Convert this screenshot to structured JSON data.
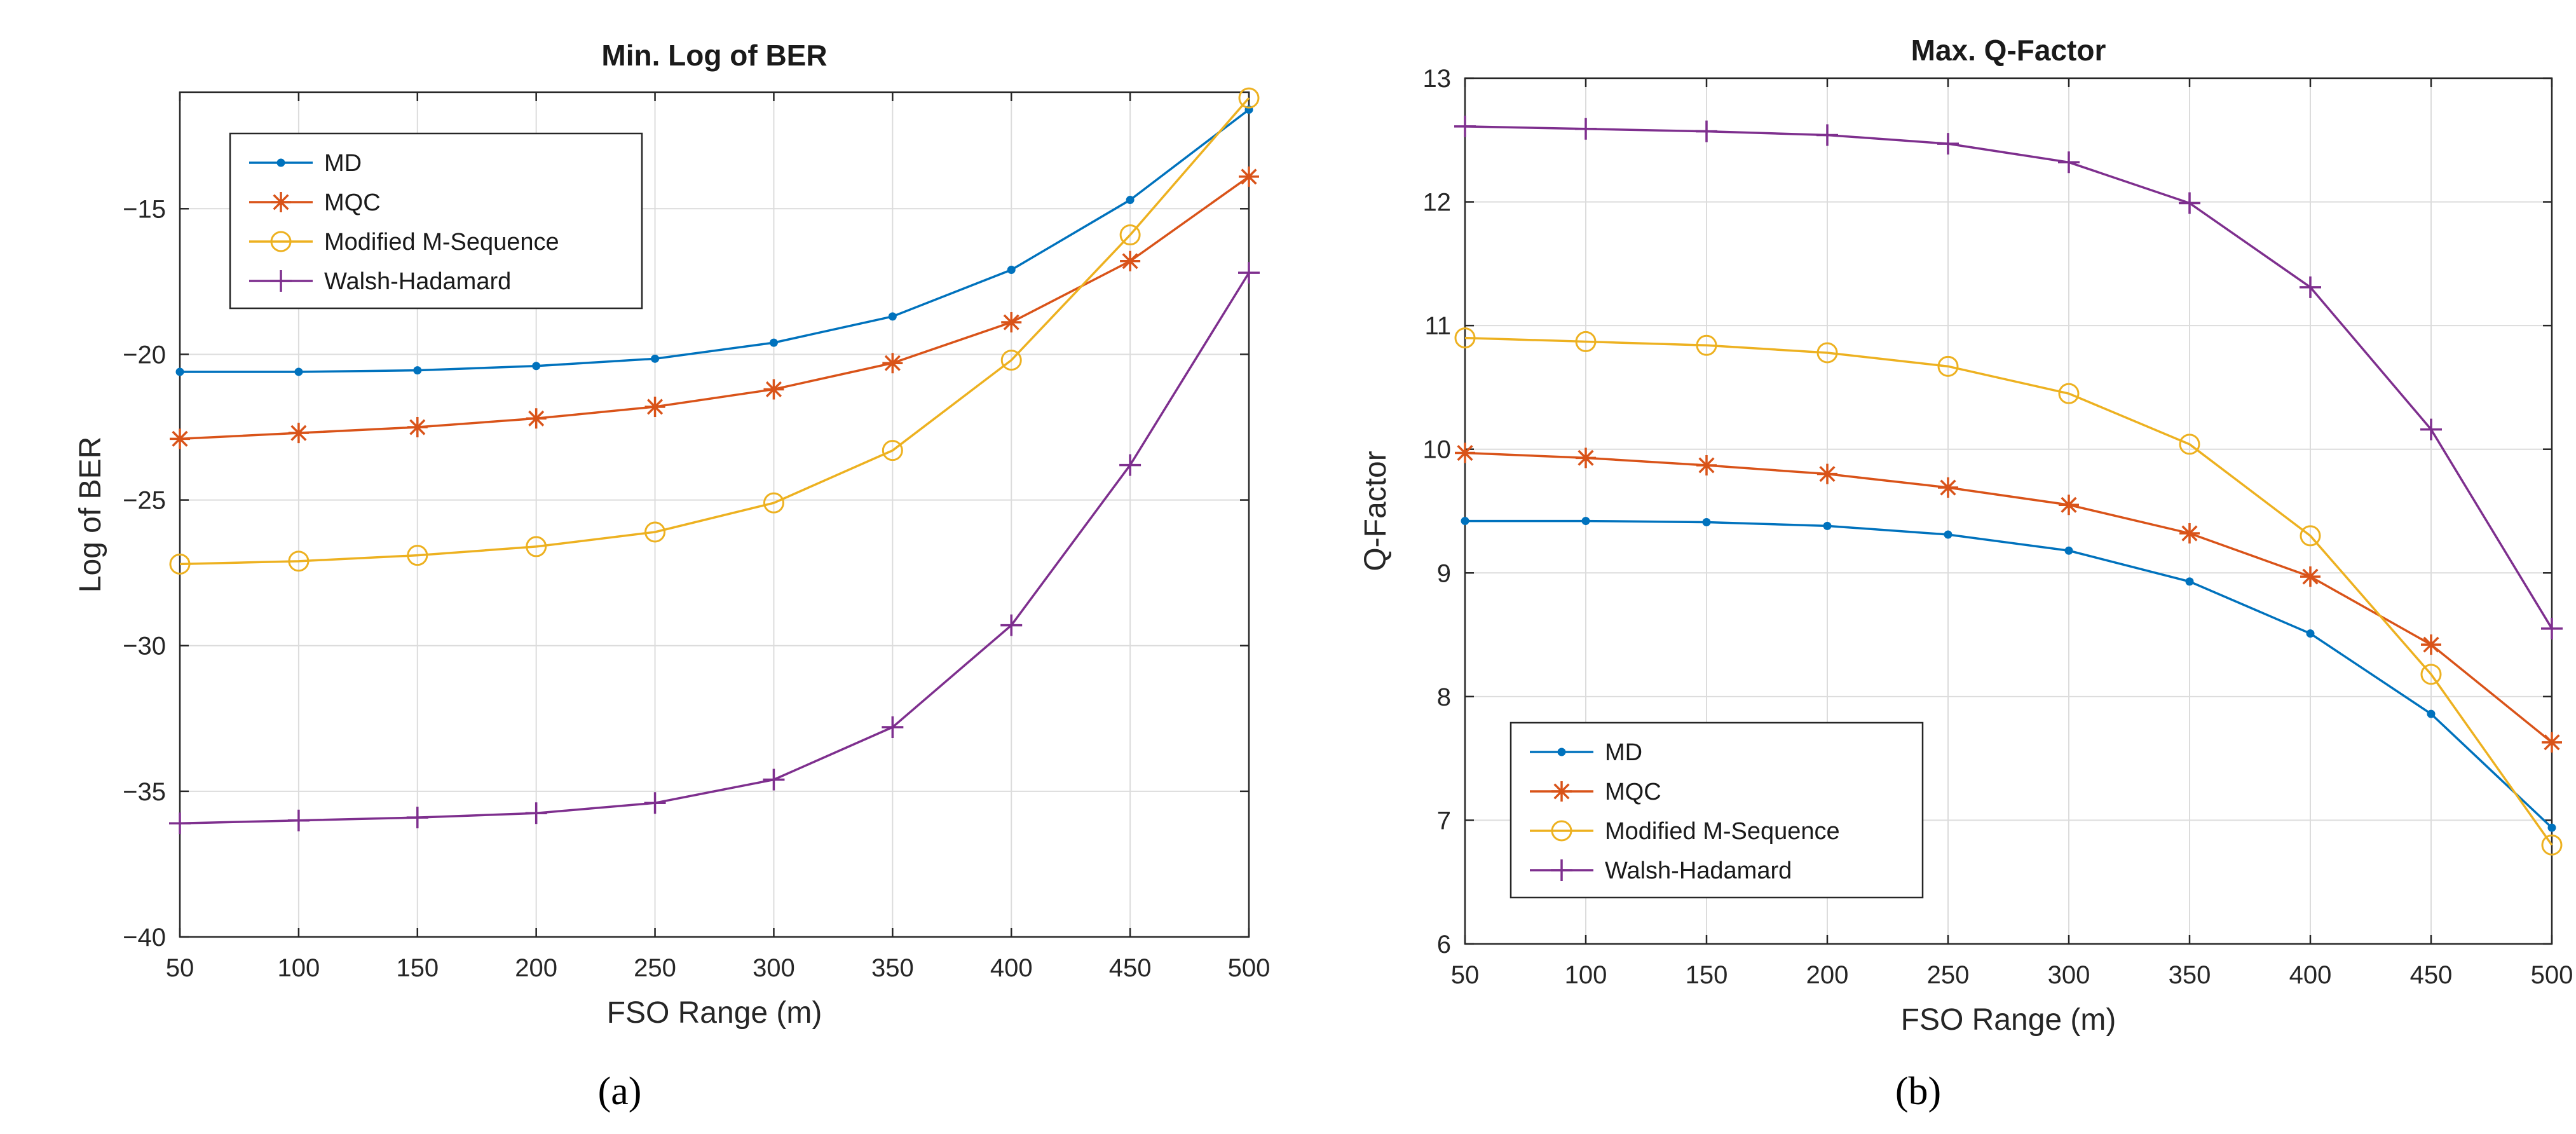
{
  "chart_data": [
    {
      "type": "line",
      "title": "Min. Log of BER",
      "xlabel": "FSO Range (m)",
      "ylabel": "Log of BER",
      "caption": "(a)",
      "x": [
        50,
        100,
        150,
        200,
        250,
        300,
        350,
        400,
        450,
        500
      ],
      "xlim": [
        50,
        500
      ],
      "ylim": [
        -40,
        -11
      ],
      "xticks": [
        50,
        100,
        150,
        200,
        250,
        300,
        350,
        400,
        450,
        500
      ],
      "yticks": [
        -40,
        -35,
        -30,
        -25,
        -20,
        -15
      ],
      "ytick_labels": [
        "−40",
        "−35",
        "−30",
        "−25",
        "−20",
        "−15"
      ],
      "grid": true,
      "legend_position": "top-left",
      "series": [
        {
          "name": "MD",
          "color": "#0072BD",
          "marker": "dot",
          "values": [
            -20.6,
            -20.6,
            -20.55,
            -20.4,
            -20.15,
            -19.6,
            -18.7,
            -17.1,
            -14.7,
            -11.6
          ]
        },
        {
          "name": "MQC",
          "color": "#D95319",
          "marker": "asterisk",
          "values": [
            -22.9,
            -22.7,
            -22.5,
            -22.2,
            -21.8,
            -21.2,
            -20.3,
            -18.9,
            -16.8,
            -13.9
          ]
        },
        {
          "name": "Modified M-Sequence",
          "color": "#EDB120",
          "marker": "circle",
          "values": [
            -27.2,
            -27.1,
            -26.9,
            -26.6,
            -26.1,
            -25.1,
            -23.3,
            -20.2,
            -15.9,
            -11.2
          ]
        },
        {
          "name": "Walsh-Hadamard",
          "color": "#7E2F8E",
          "marker": "plus",
          "values": [
            -36.1,
            -36.0,
            -35.9,
            -35.75,
            -35.4,
            -34.6,
            -32.8,
            -29.3,
            -23.8,
            -17.2
          ]
        }
      ]
    },
    {
      "type": "line",
      "title": "Max. Q-Factor",
      "xlabel": "FSO Range (m)",
      "ylabel": "Q-Factor",
      "caption": "(b)",
      "x": [
        50,
        100,
        150,
        200,
        250,
        300,
        350,
        400,
        450,
        500
      ],
      "xlim": [
        50,
        500
      ],
      "ylim": [
        6,
        13
      ],
      "xticks": [
        50,
        100,
        150,
        200,
        250,
        300,
        350,
        400,
        450,
        500
      ],
      "yticks": [
        6,
        7,
        8,
        9,
        10,
        11,
        12,
        13
      ],
      "ytick_labels": [
        "6",
        "7",
        "8",
        "9",
        "10",
        "11",
        "12",
        "13"
      ],
      "grid": true,
      "legend_position": "bottom-left",
      "series": [
        {
          "name": "MD",
          "color": "#0072BD",
          "marker": "dot",
          "values": [
            9.42,
            9.42,
            9.41,
            9.38,
            9.31,
            9.18,
            8.93,
            8.51,
            7.86,
            6.94
          ]
        },
        {
          "name": "MQC",
          "color": "#D95319",
          "marker": "asterisk",
          "values": [
            9.97,
            9.93,
            9.87,
            9.8,
            9.69,
            9.55,
            9.32,
            8.97,
            8.42,
            7.63
          ]
        },
        {
          "name": "Modified M-Sequence",
          "color": "#EDB120",
          "marker": "circle",
          "values": [
            10.9,
            10.87,
            10.84,
            10.78,
            10.67,
            10.45,
            10.04,
            9.3,
            8.18,
            6.8
          ]
        },
        {
          "name": "Walsh-Hadamard",
          "color": "#7E2F8E",
          "marker": "plus",
          "values": [
            12.61,
            12.59,
            12.57,
            12.54,
            12.47,
            12.32,
            11.99,
            11.31,
            10.16,
            8.55
          ]
        }
      ]
    }
  ]
}
